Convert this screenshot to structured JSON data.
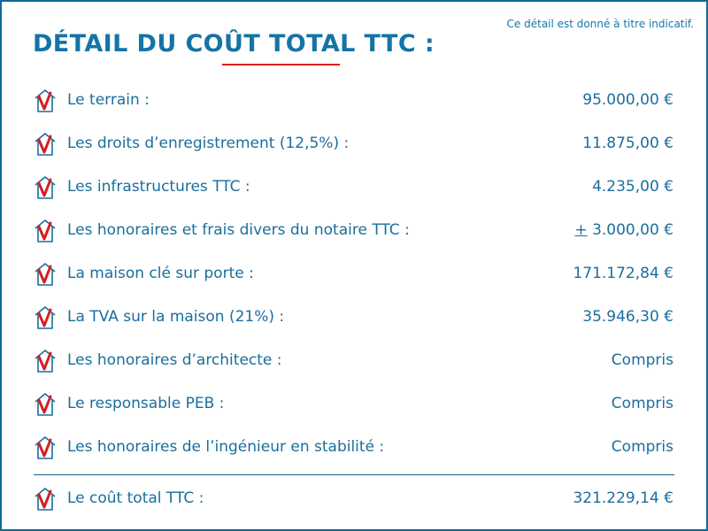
{
  "note": "Ce détail est donné à titre indicatif.",
  "title": "DÉTAIL DU COÛT TOTAL TTC :",
  "rows": [
    {
      "label": "Le terrain :",
      "value": "95.000,00 €"
    },
    {
      "label": "Les droits d’enregistrement (12,5%) :",
      "value": "11.875,00 €"
    },
    {
      "label": "Les infrastructures TTC :",
      "value": "4.235,00 €"
    },
    {
      "label": "Les honoraires et frais divers du notaire TTC :",
      "value_prefix": "+",
      "value": "3.000,00 €"
    },
    {
      "label": "La maison clé sur porte :",
      "value": "171.172,84 €"
    },
    {
      "label": "La TVA sur la maison (21%) :",
      "value": "35.946,30 €"
    },
    {
      "label": "Les honoraires d’architecte :",
      "value": "Compris"
    },
    {
      "label": "Le responsable PEB :",
      "value": "Compris"
    },
    {
      "label": "Les honoraires de l’ingénieur en stabilité :",
      "value": "Compris"
    }
  ],
  "total": {
    "label": "Le coût total TTC :",
    "value": "321.229,14 €"
  },
  "colors": {
    "text": "#1a6e9c",
    "title": "#1474a6",
    "accent_red": "#d51f1f",
    "border": "#0f6b96"
  },
  "icon": "house-checkmark-icon"
}
